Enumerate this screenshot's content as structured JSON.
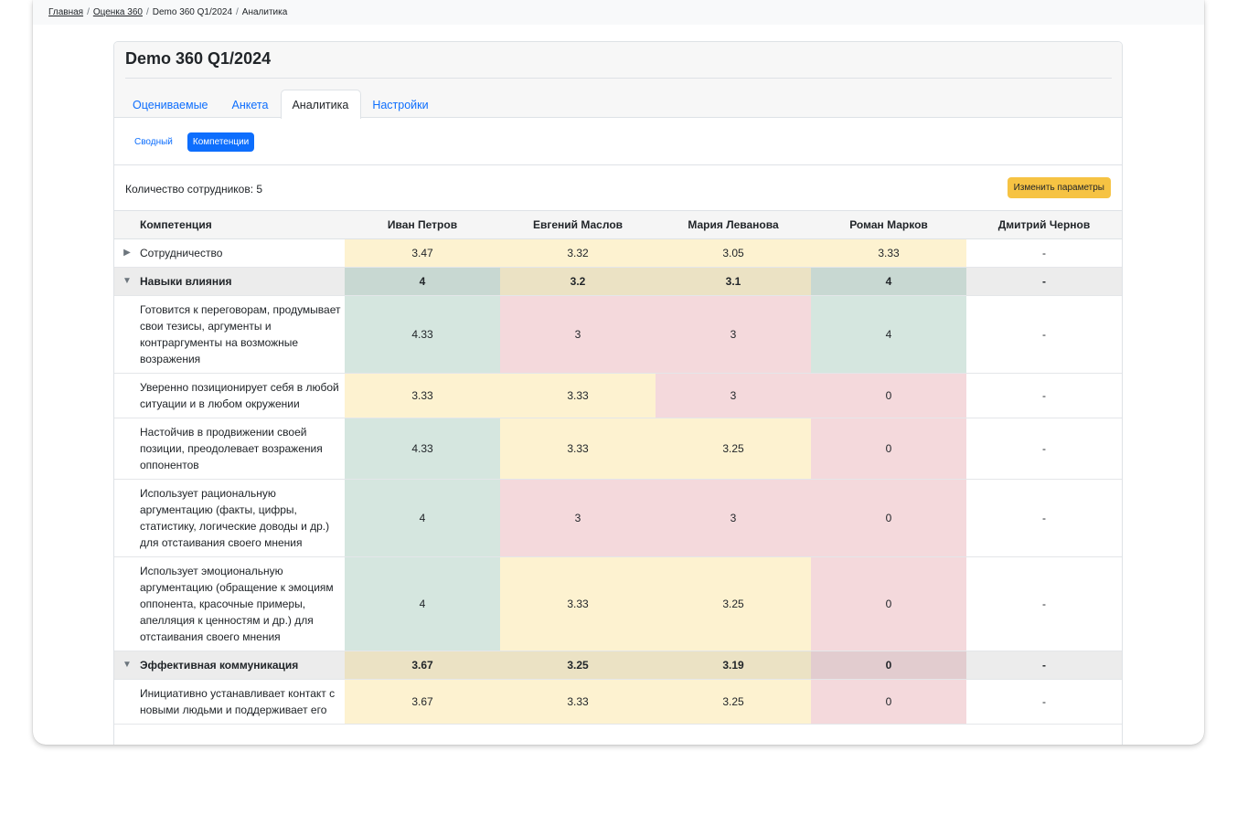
{
  "breadcrumb": {
    "items": [
      "Главная",
      "Оценка 360",
      "Demo 360 Q1/2024",
      "Аналитика"
    ]
  },
  "card": {
    "title": "Demo 360 Q1/2024",
    "tabs": [
      "Оцениваемые",
      "Анкета",
      "Аналитика",
      "Настройки"
    ],
    "active_tab": "Аналитика",
    "subtabs": [
      "Сводный",
      "Компетенции"
    ],
    "active_subtab": "Компетенции"
  },
  "toolbar": {
    "count_label": "Количество сотрудников: 5",
    "change_params_label": "Изменить параметры"
  },
  "colors": {
    "high": "#d5e6df",
    "mid": "#fdf2d0",
    "low": "#f4d9dc",
    "primary": "#0d6efd",
    "warning": "#f6c343"
  },
  "table": {
    "headers": [
      "Компетенция",
      "Иван Петров",
      "Евгений Маслов",
      "Мария Леванова",
      "Роман Марков",
      "Дмитрий Чернов"
    ],
    "rows": [
      {
        "kind": "simple",
        "arrow": "▶",
        "name": "Сотрудничество",
        "values": [
          "3.47",
          "3.32",
          "3.05",
          "3.33",
          "-"
        ],
        "levels": [
          "y",
          "y",
          "y",
          "y",
          "w"
        ]
      },
      {
        "kind": "group",
        "arrow": "▼",
        "name": "Навыки влияния",
        "values": [
          "4",
          "3.2",
          "3.1",
          "4",
          "-"
        ],
        "levels": [
          "g",
          "y",
          "y",
          "g",
          "w"
        ]
      },
      {
        "kind": "item",
        "arrow": "",
        "name": "Готовится к переговорам, продумывает свои тезисы, аргументы и контраргументы на возможные возражения",
        "values": [
          "4.33",
          "3",
          "3",
          "4",
          "-"
        ],
        "levels": [
          "g",
          "r",
          "r",
          "g",
          "w"
        ]
      },
      {
        "kind": "item",
        "arrow": "",
        "name": "Уверенно позиционирует себя в любой ситуации и в любом окружении",
        "values": [
          "3.33",
          "3.33",
          "3",
          "0",
          "-"
        ],
        "levels": [
          "y",
          "y",
          "r",
          "r",
          "w"
        ]
      },
      {
        "kind": "item",
        "arrow": "",
        "name": "Настойчив в продвижении своей позиции, преодолевает возражения оппонентов",
        "values": [
          "4.33",
          "3.33",
          "3.25",
          "0",
          "-"
        ],
        "levels": [
          "g",
          "y",
          "y",
          "r",
          "w"
        ]
      },
      {
        "kind": "item",
        "arrow": "",
        "name": "Использует рациональную аргументацию (факты, цифры, статистику, логические доводы и др.) для отстаивания своего мнения",
        "values": [
          "4",
          "3",
          "3",
          "0",
          "-"
        ],
        "levels": [
          "g",
          "r",
          "r",
          "r",
          "w"
        ]
      },
      {
        "kind": "item",
        "arrow": "",
        "name": "Использует эмоциональную аргументацию (обращение к эмоциям оппонента, красочные примеры, апелляция к ценностям и др.) для отстаивания своего мнения",
        "values": [
          "4",
          "3.33",
          "3.25",
          "0",
          "-"
        ],
        "levels": [
          "g",
          "y",
          "y",
          "r",
          "w"
        ]
      },
      {
        "kind": "group",
        "arrow": "▼",
        "name": "Эффективная коммуникация",
        "values": [
          "3.67",
          "3.25",
          "3.19",
          "0",
          "-"
        ],
        "levels": [
          "y",
          "y",
          "y",
          "r",
          "w"
        ]
      },
      {
        "kind": "item",
        "arrow": "",
        "name": "Инициативно устанавливает контакт с новыми людьми и поддерживает его",
        "values": [
          "3.67",
          "3.33",
          "3.25",
          "0",
          "-"
        ],
        "levels": [
          "y",
          "y",
          "y",
          "r",
          "w"
        ]
      }
    ]
  }
}
